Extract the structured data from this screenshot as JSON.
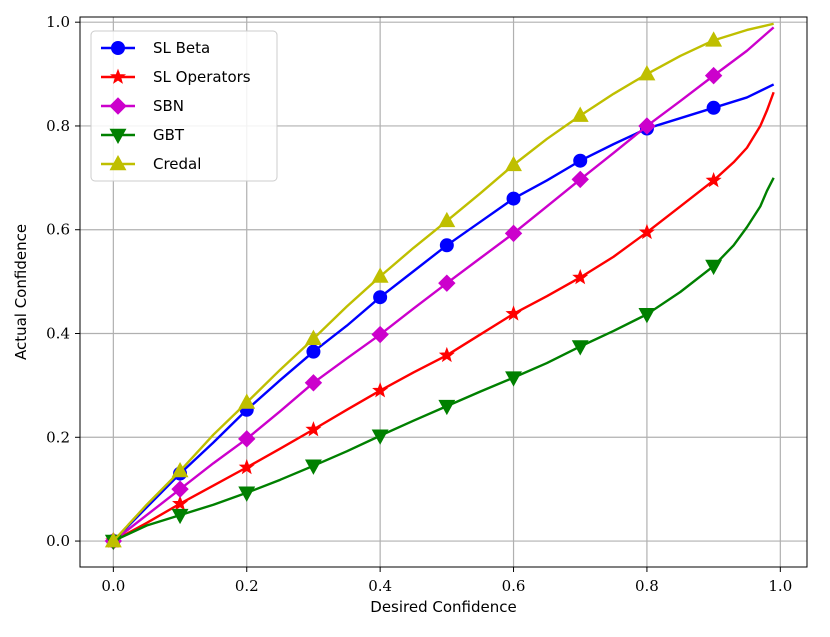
{
  "chart_data": {
    "type": "line",
    "xlabel": "Desired Confidence",
    "ylabel": "Actual Confidence",
    "xlim": [
      -0.05,
      1.04
    ],
    "ylim": [
      -0.05,
      1.01
    ],
    "xticks": [
      "0.0",
      "0.2",
      "0.4",
      "0.6",
      "0.8",
      "1.0"
    ],
    "yticks": [
      "0.0",
      "0.2",
      "0.4",
      "0.6",
      "0.8",
      "1.0"
    ],
    "grid": true,
    "legend_position": "top-left",
    "series": [
      {
        "name": "SL Beta",
        "color": "#0000ff",
        "marker": "circle",
        "x": [
          0.0,
          0.05,
          0.1,
          0.15,
          0.2,
          0.25,
          0.3,
          0.35,
          0.4,
          0.45,
          0.5,
          0.55,
          0.6,
          0.65,
          0.7,
          0.75,
          0.8,
          0.85,
          0.9,
          0.95,
          0.99
        ],
        "y": [
          0.0,
          0.065,
          0.13,
          0.19,
          0.253,
          0.31,
          0.365,
          0.415,
          0.47,
          0.52,
          0.57,
          0.615,
          0.66,
          0.695,
          0.733,
          0.765,
          0.795,
          0.815,
          0.835,
          0.855,
          0.88
        ],
        "marker_x": [
          0.0,
          0.1,
          0.2,
          0.3,
          0.4,
          0.5,
          0.6,
          0.7,
          0.8,
          0.9
        ],
        "marker_y": [
          0.0,
          0.13,
          0.253,
          0.365,
          0.47,
          0.57,
          0.66,
          0.733,
          0.795,
          0.835
        ]
      },
      {
        "name": "SL Operators",
        "color": "#ff0000",
        "marker": "star",
        "x": [
          0.0,
          0.05,
          0.1,
          0.15,
          0.2,
          0.25,
          0.3,
          0.35,
          0.4,
          0.45,
          0.5,
          0.55,
          0.6,
          0.65,
          0.7,
          0.75,
          0.8,
          0.85,
          0.9,
          0.93,
          0.95,
          0.97,
          0.98,
          0.99
        ],
        "y": [
          0.0,
          0.035,
          0.072,
          0.107,
          0.142,
          0.178,
          0.215,
          0.253,
          0.29,
          0.325,
          0.358,
          0.398,
          0.438,
          0.472,
          0.508,
          0.548,
          0.595,
          0.645,
          0.695,
          0.73,
          0.758,
          0.8,
          0.83,
          0.865
        ],
        "marker_x": [
          0.0,
          0.1,
          0.2,
          0.3,
          0.4,
          0.5,
          0.6,
          0.7,
          0.8,
          0.9
        ],
        "marker_y": [
          0.0,
          0.072,
          0.142,
          0.215,
          0.29,
          0.358,
          0.438,
          0.508,
          0.595,
          0.695
        ]
      },
      {
        "name": "SBN",
        "color": "#cc00cc",
        "marker": "diamond",
        "x": [
          0.0,
          0.05,
          0.1,
          0.15,
          0.2,
          0.25,
          0.3,
          0.35,
          0.4,
          0.45,
          0.5,
          0.55,
          0.6,
          0.65,
          0.7,
          0.75,
          0.8,
          0.85,
          0.9,
          0.95,
          0.99
        ],
        "y": [
          0.0,
          0.05,
          0.1,
          0.15,
          0.197,
          0.25,
          0.305,
          0.352,
          0.398,
          0.448,
          0.497,
          0.545,
          0.593,
          0.645,
          0.697,
          0.748,
          0.8,
          0.848,
          0.897,
          0.945,
          0.99
        ],
        "marker_x": [
          0.0,
          0.1,
          0.2,
          0.3,
          0.4,
          0.5,
          0.6,
          0.7,
          0.8,
          0.9
        ],
        "marker_y": [
          0.0,
          0.1,
          0.197,
          0.305,
          0.398,
          0.497,
          0.593,
          0.697,
          0.8,
          0.897
        ]
      },
      {
        "name": "GBT",
        "color": "#008000",
        "marker": "triangle-down",
        "x": [
          0.0,
          0.05,
          0.1,
          0.15,
          0.2,
          0.25,
          0.3,
          0.35,
          0.4,
          0.45,
          0.5,
          0.55,
          0.6,
          0.65,
          0.7,
          0.75,
          0.8,
          0.85,
          0.9,
          0.93,
          0.95,
          0.97,
          0.98,
          0.99
        ],
        "y": [
          0.0,
          0.03,
          0.05,
          0.07,
          0.093,
          0.118,
          0.145,
          0.173,
          0.203,
          0.232,
          0.26,
          0.288,
          0.315,
          0.343,
          0.375,
          0.405,
          0.437,
          0.48,
          0.53,
          0.57,
          0.605,
          0.645,
          0.675,
          0.7
        ],
        "marker_x": [
          0.0,
          0.1,
          0.2,
          0.3,
          0.4,
          0.5,
          0.6,
          0.7,
          0.8,
          0.9
        ],
        "marker_y": [
          0.0,
          0.05,
          0.093,
          0.145,
          0.203,
          0.26,
          0.315,
          0.375,
          0.437,
          0.53
        ]
      },
      {
        "name": "Credal",
        "color": "#bfbf00",
        "marker": "triangle-up",
        "x": [
          0.0,
          0.05,
          0.1,
          0.15,
          0.2,
          0.25,
          0.3,
          0.35,
          0.4,
          0.45,
          0.5,
          0.55,
          0.6,
          0.65,
          0.7,
          0.75,
          0.8,
          0.85,
          0.9,
          0.95,
          0.99
        ],
        "y": [
          0.0,
          0.07,
          0.135,
          0.205,
          0.267,
          0.33,
          0.39,
          0.452,
          0.51,
          0.565,
          0.617,
          0.67,
          0.725,
          0.775,
          0.82,
          0.862,
          0.9,
          0.935,
          0.965,
          0.985,
          0.997
        ],
        "marker_x": [
          0.0,
          0.1,
          0.2,
          0.3,
          0.4,
          0.5,
          0.6,
          0.7,
          0.8,
          0.9
        ],
        "marker_y": [
          0.0,
          0.135,
          0.267,
          0.39,
          0.51,
          0.617,
          0.725,
          0.82,
          0.9,
          0.965
        ]
      }
    ]
  }
}
